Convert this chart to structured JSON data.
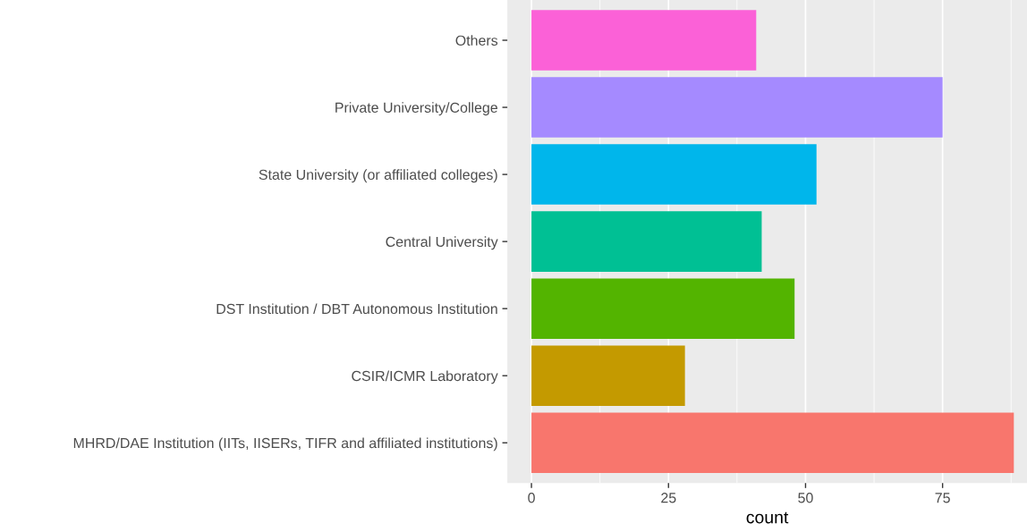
{
  "chart_data": {
    "type": "bar",
    "orientation": "horizontal",
    "xlabel": "count",
    "categories": [
      "Others",
      "Private University/College",
      "State University (or affiliated colleges)",
      "Central University",
      "DST Institution / DBT Autonomous Institution",
      "CSIR/ICMR Laboratory",
      "MHRD/DAE Institution (IITs, IISERs, TIFR and affiliated institutions)"
    ],
    "values": [
      41,
      75,
      52,
      42,
      48,
      28,
      88
    ],
    "colors": [
      "#fb61d7",
      "#a58aff",
      "#00b6eb",
      "#00c094",
      "#53b400",
      "#c49a00",
      "#f8766d"
    ],
    "xlim": [
      -4.4,
      90.4
    ],
    "xticks": [
      0,
      25,
      50,
      75
    ],
    "grid": "x",
    "legend": false
  }
}
